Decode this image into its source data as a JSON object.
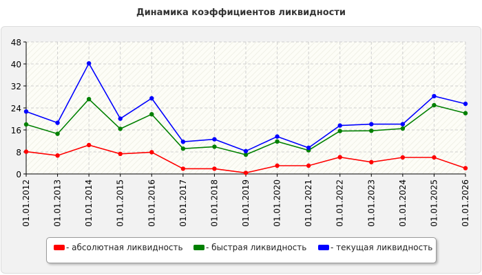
{
  "chart_data": {
    "type": "line",
    "title": "Динамика коэффициентов ликвидности",
    "xlabel": "",
    "ylabel": "",
    "categories": [
      "01.01.2012",
      "01.01.2013",
      "01.01.2014",
      "01.01.2015",
      "01.01.2016",
      "01.01.2017",
      "01.01.2018",
      "01.01.2019",
      "01.01.2020",
      "01.01.2021",
      "01.01.2022",
      "01.01.2023",
      "01.01.2024",
      "01.01.2025",
      "01.01.2026"
    ],
    "ylim": [
      0,
      48
    ],
    "yticks": [
      "0",
      "8",
      "16",
      "24",
      "32",
      "40",
      "48"
    ],
    "grid": true,
    "legend_position": "bottom",
    "series": [
      {
        "name": "- абсолютная ликвидность",
        "color": "#ff0000",
        "values": [
          8.1,
          6.7,
          10.5,
          7.3,
          7.9,
          1.9,
          1.9,
          0.4,
          3.0,
          3.0,
          6.1,
          4.3,
          6.0,
          6.0,
          2.1
        ]
      },
      {
        "name": "- быстрая ликвидность",
        "color": "#008000",
        "values": [
          18.0,
          14.6,
          27.2,
          16.4,
          21.7,
          9.2,
          9.9,
          7.0,
          11.8,
          8.6,
          15.6,
          15.7,
          16.5,
          25.0,
          22.1
        ]
      },
      {
        "name": "- текущая ликвидность",
        "color": "#0000ff",
        "values": [
          22.7,
          18.6,
          40.2,
          20.1,
          27.5,
          11.7,
          12.6,
          8.3,
          13.6,
          9.5,
          17.6,
          18.1,
          18.1,
          28.3,
          25.5
        ]
      }
    ]
  }
}
